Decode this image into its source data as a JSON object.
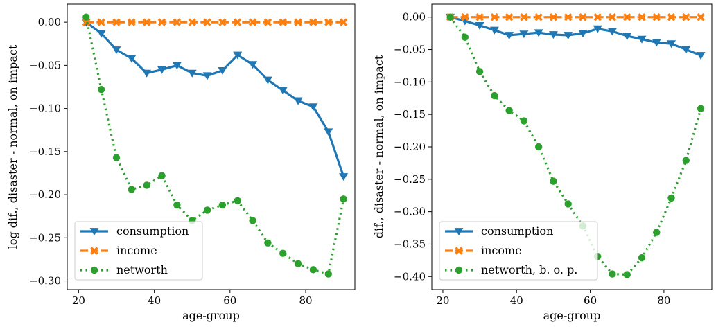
{
  "chart_data": [
    {
      "type": "line",
      "xlabel": "age-group",
      "ylabel": "log dif., disaster - normal, on impact",
      "xlim": [
        17,
        93
      ],
      "ylim": [
        -0.31,
        0.021
      ],
      "xticks": [
        20,
        40,
        60,
        80
      ],
      "xtick_labels": [
        "20",
        "40",
        "60",
        "80"
      ],
      "yticks": [
        0.0,
        -0.05,
        -0.1,
        -0.15,
        -0.2,
        -0.25,
        -0.3
      ],
      "ytick_labels": [
        "0.00",
        "−0.05",
        "−0.10",
        "−0.15",
        "−0.20",
        "−0.25",
        "−0.30"
      ],
      "legend_position": "lower-left",
      "x": [
        22,
        26,
        30,
        34,
        38,
        42,
        46,
        50,
        54,
        58,
        62,
        66,
        70,
        74,
        78,
        82,
        86,
        90
      ],
      "series": [
        {
          "name": "consumption",
          "color": "#1f77b4",
          "marker": "triangle-down",
          "style": "solid",
          "values": [
            0.0,
            -0.013,
            -0.032,
            -0.042,
            -0.059,
            -0.055,
            -0.05,
            -0.059,
            -0.062,
            -0.056,
            -0.038,
            -0.049,
            -0.067,
            -0.079,
            -0.091,
            -0.098,
            -0.127,
            -0.179
          ]
        },
        {
          "name": "income",
          "color": "#ff7f0e",
          "marker": "x",
          "style": "dashed",
          "values": [
            0.0,
            0.0,
            0.0,
            0.0,
            0.0,
            0.0,
            0.0,
            0.0,
            0.0,
            0.0,
            0.0,
            0.0,
            0.0,
            0.0,
            0.0,
            0.0,
            0.0,
            0.0
          ]
        },
        {
          "name": "networth",
          "color": "#2ca02c",
          "marker": "circle",
          "style": "dotted",
          "values": [
            0.006,
            -0.078,
            -0.157,
            -0.194,
            -0.189,
            -0.178,
            -0.212,
            -0.23,
            -0.218,
            -0.212,
            -0.207,
            -0.23,
            -0.256,
            -0.268,
            -0.28,
            -0.287,
            -0.292,
            -0.205
          ]
        }
      ]
    },
    {
      "type": "line",
      "xlabel": "age-group",
      "ylabel": "dif., disaster - normal, on impact",
      "xlim": [
        17,
        93
      ],
      "ylim": [
        -0.42,
        0.02
      ],
      "xticks": [
        20,
        40,
        60,
        80
      ],
      "xtick_labels": [
        "20",
        "40",
        "60",
        "80"
      ],
      "yticks": [
        0.0,
        -0.05,
        -0.1,
        -0.15,
        -0.2,
        -0.25,
        -0.3,
        -0.35,
        -0.4
      ],
      "ytick_labels": [
        "0.00",
        "−0.05",
        "−0.10",
        "−0.15",
        "−0.20",
        "−0.25",
        "−0.30",
        "−0.35",
        "−0.40"
      ],
      "legend_position": "lower-left",
      "x": [
        22,
        26,
        30,
        34,
        38,
        42,
        46,
        50,
        54,
        58,
        62,
        66,
        70,
        74,
        78,
        82,
        86,
        90
      ],
      "series": [
        {
          "name": "consumption",
          "color": "#1f77b4",
          "marker": "triangle-down",
          "style": "solid",
          "values": [
            0.0,
            -0.006,
            -0.013,
            -0.02,
            -0.028,
            -0.026,
            -0.024,
            -0.027,
            -0.028,
            -0.025,
            -0.018,
            -0.022,
            -0.029,
            -0.034,
            -0.039,
            -0.041,
            -0.05,
            -0.059
          ]
        },
        {
          "name": "income",
          "color": "#ff7f0e",
          "marker": "x",
          "style": "dashed",
          "values": [
            0.0,
            0.0,
            0.0,
            0.0,
            0.0,
            0.0,
            0.0,
            0.0,
            0.0,
            0.0,
            0.0,
            0.0,
            0.0,
            0.0,
            0.0,
            0.0,
            0.0,
            0.0
          ]
        },
        {
          "name": "networth, b. o. p.",
          "color": "#2ca02c",
          "marker": "circle",
          "style": "dotted",
          "values": [
            0.0,
            -0.031,
            -0.084,
            -0.121,
            -0.144,
            -0.16,
            -0.2,
            -0.253,
            -0.288,
            -0.322,
            -0.369,
            -0.396,
            -0.397,
            -0.371,
            -0.332,
            -0.279,
            -0.221,
            -0.141
          ]
        }
      ]
    }
  ]
}
